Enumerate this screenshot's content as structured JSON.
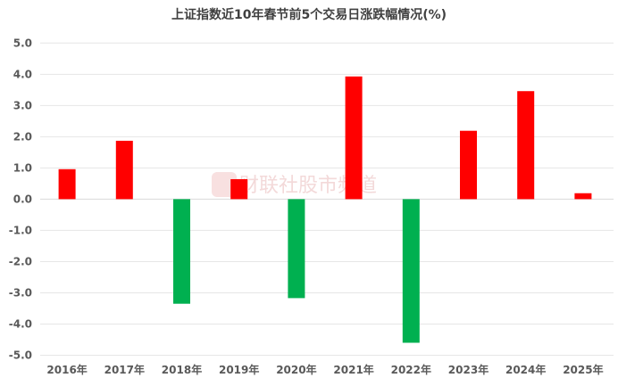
{
  "chart_data": {
    "type": "bar",
    "title": "上证指数近10年春节前5个交易日涨跌幅情况(%)",
    "categories": [
      "2016年",
      "2017年",
      "2018年",
      "2019年",
      "2020年",
      "2021年",
      "2022年",
      "2023年",
      "2024年",
      "2025年"
    ],
    "values": [
      0.96,
      1.87,
      -3.35,
      0.64,
      -3.17,
      3.93,
      -4.6,
      2.19,
      3.46,
      0.19
    ],
    "ylim": [
      -5.0,
      5.0
    ],
    "yticks": [
      "5.0",
      "4.0",
      "3.0",
      "2.0",
      "1.0",
      "0.0",
      "-1.0",
      "-2.0",
      "-3.0",
      "-4.0",
      "-5.0"
    ],
    "xlabel": "",
    "ylabel": "",
    "grid": true,
    "colors": {
      "positive": "#ff0000",
      "negative": "#00b050",
      "grid": "#e6e6e6"
    }
  },
  "watermark": "财联社股市频道"
}
